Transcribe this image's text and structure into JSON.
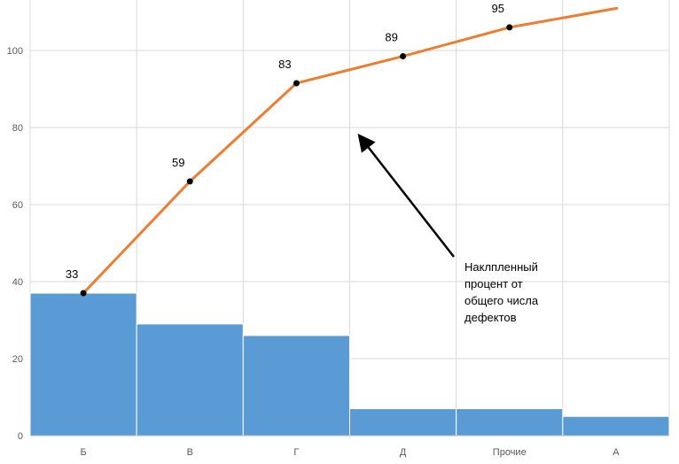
{
  "chart_data": {
    "type": "bar",
    "categories": [
      "Б",
      "В",
      "Г",
      "Д",
      "Прочие",
      "А"
    ],
    "series": [
      {
        "type": "bar",
        "values": [
          37,
          29,
          26,
          7,
          7,
          5
        ]
      },
      {
        "type": "line",
        "values": [
          37,
          66,
          91.5,
          98.5,
          106,
          111
        ]
      }
    ],
    "data_labels": [
      "33",
      "59",
      "83",
      "89",
      "95"
    ],
    "yticks": [
      0,
      20,
      40,
      60,
      80,
      100
    ],
    "ylim": [
      0,
      112
    ],
    "grid": true,
    "annotation": [
      "Наклпленный",
      "процент от",
      "общего числа",
      "дефектов"
    ],
    "colors": {
      "bar": "#5b9bd5",
      "line": "#ed7d31",
      "marker": "#000000",
      "grid": "#d9d9d9",
      "axis": "#bfbfbf"
    }
  }
}
